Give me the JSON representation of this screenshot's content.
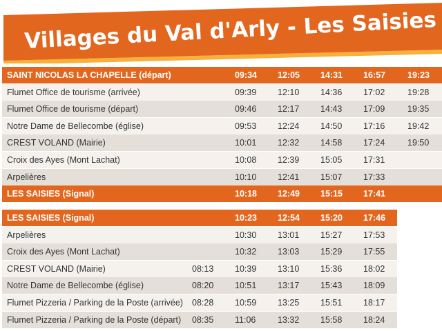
{
  "header": {
    "title": "Villages du Val d'Arly - Les Saisies"
  },
  "tables": [
    {
      "columns_x": [
        10,
        340,
        402,
        464,
        526,
        590
      ],
      "width": 637,
      "top": 97,
      "highlighted": [
        0,
        7
      ],
      "rows": [
        [
          "SAINT NICOLAS LA CHAPELLE (départ)",
          "09:34",
          "12:05",
          "14:31",
          "16:57",
          "19:23"
        ],
        [
          "Flumet Office de tourisme (arrivée)",
          "09:39",
          "12:10",
          "14:36",
          "17:02",
          "19:28"
        ],
        [
          "Flumet Office de tourisme (départ)",
          "09:46",
          "12:17",
          "14:43",
          "17:09",
          "19:35"
        ],
        [
          "Notre Dame de Bellecombe (église)",
          "09:53",
          "12:24",
          "14:50",
          "17:16",
          "19:42"
        ],
        [
          "CREST VOLAND (Mairie)",
          "10:01",
          "12:32",
          "14:58",
          "17:24",
          "19:50"
        ],
        [
          "Croix des Ayes (Mont Lachat)",
          "10:08",
          "12:39",
          "15:05",
          "17:31"
        ],
        [
          "Arpelières",
          "10:10",
          "12:41",
          "15:07",
          "17:33"
        ],
        [
          "LES SAISIES (Signal)",
          "10:18",
          "12:49",
          "15:15",
          "17:41"
        ]
      ]
    },
    {
      "columns_x": [
        10,
        278,
        340,
        402,
        464,
        526
      ],
      "width": 572,
      "top": 304,
      "highlighted": [
        0
      ],
      "rows": [
        [
          "LES SAISIES (Signal)",
          null,
          "10:23",
          "12:54",
          "15:20",
          "17:46"
        ],
        [
          "Arpelières",
          null,
          "10:30",
          "13:01",
          "15:27",
          "17:53"
        ],
        [
          "Croix des Ayes (Mont Lachat)",
          null,
          "10:32",
          "13:03",
          "15:29",
          "17:55"
        ],
        [
          "CREST VOLAND (Mairie)",
          "08:13",
          "10:39",
          "13:10",
          "15:36",
          "18:02"
        ],
        [
          "Notre Dame de Bellecombe (église)",
          "08:20",
          "10:51",
          "13:17",
          "15:43",
          "18:09"
        ],
        [
          "Flumet Pizzeria / Parking de la Poste (arrivée)",
          "08:28",
          "10:59",
          "13:25",
          "15:51",
          "18:17"
        ],
        [
          "Flumet Pizzeria / Parking de la Poste (départ)",
          "08:35",
          "11:06",
          "13:32",
          "15:58",
          "18:24"
        ]
      ]
    }
  ]
}
